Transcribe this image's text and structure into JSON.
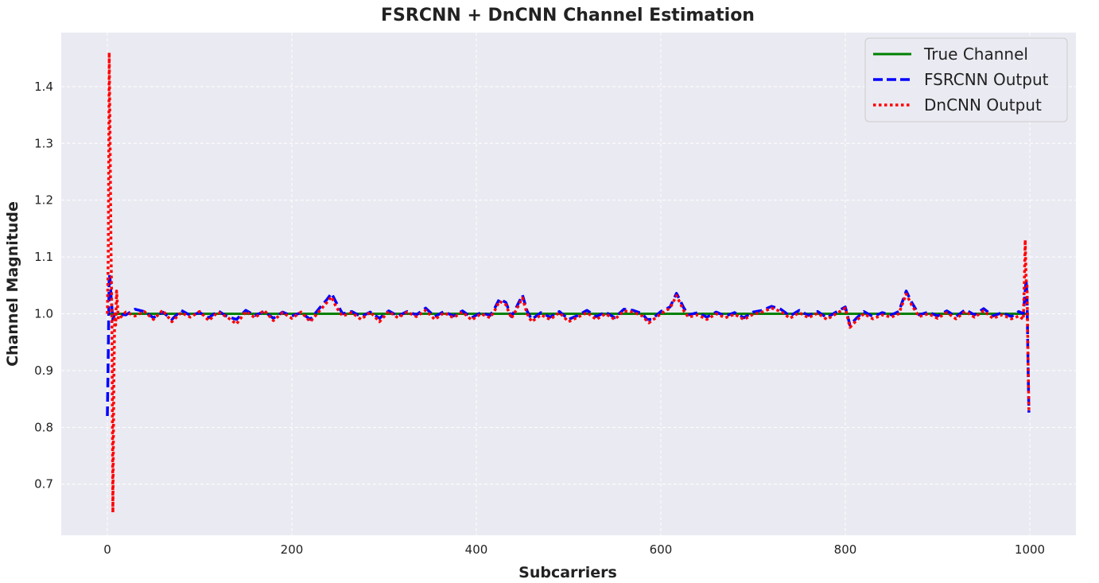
{
  "chart_data": {
    "type": "line",
    "title": "FSRCNN + DnCNN Channel Estimation",
    "xlabel": "Subcarriers",
    "ylabel": "Channel Magnitude",
    "xlim": [
      -50,
      1050
    ],
    "ylim": [
      0.61,
      1.495
    ],
    "xticks": [
      0,
      200,
      400,
      600,
      800,
      1000
    ],
    "yticks": [
      0.7,
      0.8,
      0.9,
      1.0,
      1.1,
      1.2,
      1.3,
      1.4
    ],
    "xtick_labels": [
      "0",
      "200",
      "400",
      "600",
      "800",
      "1000"
    ],
    "ytick_labels": [
      "0.7",
      "0.8",
      "0.9",
      "1.0",
      "1.1",
      "1.2",
      "1.3",
      "1.4"
    ],
    "grid": true,
    "grid_style": "dashed",
    "background": "#eaeaf2",
    "legend_position": "upper right",
    "series": [
      {
        "name": "True Channel",
        "color": "#008000",
        "style": "solid",
        "points": [
          [
            0,
            1.0
          ],
          [
            999,
            1.0
          ]
        ]
      },
      {
        "name": "FSRCNN Output",
        "color": "#0000ff",
        "style": "dashed",
        "points": [
          [
            0,
            0.82
          ],
          [
            1,
            0.93
          ],
          [
            2,
            1.07
          ],
          [
            3,
            1.06
          ],
          [
            4,
            1.03
          ],
          [
            6,
            0.99
          ],
          [
            8,
            1.0
          ],
          [
            20,
            0.998
          ],
          [
            30,
            1.008
          ],
          [
            40,
            1.004
          ],
          [
            50,
            0.993
          ],
          [
            60,
            1.003
          ],
          [
            70,
            0.99
          ],
          [
            80,
            1.006
          ],
          [
            90,
            0.997
          ],
          [
            100,
            1.002
          ],
          [
            110,
            0.993
          ],
          [
            120,
            1.005
          ],
          [
            130,
            0.995
          ],
          [
            140,
            0.99
          ],
          [
            150,
            1.006
          ],
          [
            160,
            0.997
          ],
          [
            170,
            1.004
          ],
          [
            180,
            0.992
          ],
          [
            190,
            1.003
          ],
          [
            200,
            0.996
          ],
          [
            210,
            1.002
          ],
          [
            220,
            0.99
          ],
          [
            230,
            1.01
          ],
          [
            238,
            1.025
          ],
          [
            243,
            1.036
          ],
          [
            248,
            1.02
          ],
          [
            255,
            1.0
          ],
          [
            265,
            1.004
          ],
          [
            275,
            0.995
          ],
          [
            285,
            1.003
          ],
          [
            295,
            0.992
          ],
          [
            305,
            1.005
          ],
          [
            315,
            0.996
          ],
          [
            325,
            1.004
          ],
          [
            335,
            0.998
          ],
          [
            345,
            1.01
          ],
          [
            355,
            0.995
          ],
          [
            365,
            1.004
          ],
          [
            375,
            0.996
          ],
          [
            385,
            1.005
          ],
          [
            395,
            0.993
          ],
          [
            405,
            1.002
          ],
          [
            415,
            0.997
          ],
          [
            420,
            1.01
          ],
          [
            425,
            1.026
          ],
          [
            432,
            1.02
          ],
          [
            438,
            0.995
          ],
          [
            443,
            1.01
          ],
          [
            450,
            1.033
          ],
          [
            455,
            1.005
          ],
          [
            460,
            0.99
          ],
          [
            470,
            1.002
          ],
          [
            480,
            0.994
          ],
          [
            490,
            1.004
          ],
          [
            500,
            0.99
          ],
          [
            510,
            0.997
          ],
          [
            520,
            1.006
          ],
          [
            530,
            0.995
          ],
          [
            540,
            1.003
          ],
          [
            550,
            0.993
          ],
          [
            560,
            1.008
          ],
          [
            570,
            1.006
          ],
          [
            580,
            1.0
          ],
          [
            585,
            0.99
          ],
          [
            590,
            0.99
          ],
          [
            600,
            1.004
          ],
          [
            610,
            1.012
          ],
          [
            617,
            1.036
          ],
          [
            625,
            1.01
          ],
          [
            630,
            0.998
          ],
          [
            640,
            1.002
          ],
          [
            650,
            0.994
          ],
          [
            660,
            1.003
          ],
          [
            670,
            0.996
          ],
          [
            680,
            1.002
          ],
          [
            690,
            0.993
          ],
          [
            700,
            1.003
          ],
          [
            710,
            1.006
          ],
          [
            720,
            1.013
          ],
          [
            730,
            1.008
          ],
          [
            740,
            0.996
          ],
          [
            750,
            1.006
          ],
          [
            760,
            0.997
          ],
          [
            770,
            1.004
          ],
          [
            780,
            0.993
          ],
          [
            790,
            1.003
          ],
          [
            800,
            1.012
          ],
          [
            805,
            0.98
          ],
          [
            812,
            0.992
          ],
          [
            820,
            1.004
          ],
          [
            830,
            0.995
          ],
          [
            840,
            1.002
          ],
          [
            850,
            0.998
          ],
          [
            858,
            1.004
          ],
          [
            866,
            1.04
          ],
          [
            872,
            1.02
          ],
          [
            880,
            0.998
          ],
          [
            890,
            1.003
          ],
          [
            900,
            0.996
          ],
          [
            910,
            1.005
          ],
          [
            920,
            0.995
          ],
          [
            930,
            1.007
          ],
          [
            940,
            0.998
          ],
          [
            950,
            1.009
          ],
          [
            960,
            0.996
          ],
          [
            970,
            1.002
          ],
          [
            980,
            0.995
          ],
          [
            988,
            1.004
          ],
          [
            993,
            1.0
          ],
          [
            995,
            1.04
          ],
          [
            996,
            1.06
          ],
          [
            997,
            1.03
          ],
          [
            998,
            0.92
          ],
          [
            999,
            0.826
          ]
        ]
      },
      {
        "name": "DnCNN Output",
        "color": "#ff0000",
        "style": "dotted",
        "points": [
          [
            0,
            1.0
          ],
          [
            1,
            1.1
          ],
          [
            2,
            1.46
          ],
          [
            3,
            1.3
          ],
          [
            4,
            1.11
          ],
          [
            5,
            0.98
          ],
          [
            6,
            0.65
          ],
          [
            7,
            0.88
          ],
          [
            8,
            1.0
          ],
          [
            9,
            0.98
          ],
          [
            10,
            1.04
          ],
          [
            12,
            0.99
          ],
          [
            20,
            1.003
          ],
          [
            30,
            0.996
          ],
          [
            40,
            1.004
          ],
          [
            50,
            0.99
          ],
          [
            60,
            1.006
          ],
          [
            70,
            0.986
          ],
          [
            80,
            1.002
          ],
          [
            90,
            0.994
          ],
          [
            100,
            1.004
          ],
          [
            110,
            0.988
          ],
          [
            120,
            1.003
          ],
          [
            130,
            0.994
          ],
          [
            140,
            0.982
          ],
          [
            150,
            1.004
          ],
          [
            160,
            0.993
          ],
          [
            170,
            1.006
          ],
          [
            180,
            0.988
          ],
          [
            190,
            1.002
          ],
          [
            200,
            0.992
          ],
          [
            210,
            1.003
          ],
          [
            220,
            0.986
          ],
          [
            230,
            1.005
          ],
          [
            238,
            1.02
          ],
          [
            243,
            1.03
          ],
          [
            248,
            1.012
          ],
          [
            255,
            0.996
          ],
          [
            265,
            1.002
          ],
          [
            275,
            0.99
          ],
          [
            285,
            1.003
          ],
          [
            295,
            0.986
          ],
          [
            305,
            1.004
          ],
          [
            315,
            0.993
          ],
          [
            325,
            1.003
          ],
          [
            335,
            0.995
          ],
          [
            345,
            1.006
          ],
          [
            355,
            0.99
          ],
          [
            365,
            1.002
          ],
          [
            375,
            0.993
          ],
          [
            385,
            1.003
          ],
          [
            395,
            0.989
          ],
          [
            405,
            1.0
          ],
          [
            415,
            0.993
          ],
          [
            420,
            1.006
          ],
          [
            425,
            1.022
          ],
          [
            432,
            1.016
          ],
          [
            438,
            0.992
          ],
          [
            443,
            1.006
          ],
          [
            450,
            1.028
          ],
          [
            455,
            1.0
          ],
          [
            460,
            0.986
          ],
          [
            470,
            0.998
          ],
          [
            480,
            0.99
          ],
          [
            490,
            1.002
          ],
          [
            500,
            0.986
          ],
          [
            510,
            0.994
          ],
          [
            520,
            1.002
          ],
          [
            530,
            0.99
          ],
          [
            540,
            1.0
          ],
          [
            550,
            0.99
          ],
          [
            560,
            1.005
          ],
          [
            570,
            1.003
          ],
          [
            580,
            0.996
          ],
          [
            587,
            0.984
          ],
          [
            592,
            0.99
          ],
          [
            600,
            1.0
          ],
          [
            610,
            1.01
          ],
          [
            617,
            1.032
          ],
          [
            625,
            1.005
          ],
          [
            630,
            0.994
          ],
          [
            640,
            0.998
          ],
          [
            650,
            0.99
          ],
          [
            660,
            1.0
          ],
          [
            670,
            0.993
          ],
          [
            680,
            0.999
          ],
          [
            690,
            0.99
          ],
          [
            700,
            0.999
          ],
          [
            710,
            1.003
          ],
          [
            720,
            1.01
          ],
          [
            730,
            1.004
          ],
          [
            740,
            0.992
          ],
          [
            750,
            1.002
          ],
          [
            760,
            0.993
          ],
          [
            770,
            1.001
          ],
          [
            780,
            0.99
          ],
          [
            790,
            1.0
          ],
          [
            800,
            1.01
          ],
          [
            805,
            0.976
          ],
          [
            812,
            0.988
          ],
          [
            820,
            1.0
          ],
          [
            830,
            0.991
          ],
          [
            840,
            0.998
          ],
          [
            850,
            0.994
          ],
          [
            858,
            1.0
          ],
          [
            866,
            1.035
          ],
          [
            872,
            1.015
          ],
          [
            880,
            0.995
          ],
          [
            890,
            1.0
          ],
          [
            900,
            0.992
          ],
          [
            910,
            1.002
          ],
          [
            920,
            0.991
          ],
          [
            930,
            1.004
          ],
          [
            940,
            0.994
          ],
          [
            950,
            1.005
          ],
          [
            960,
            0.992
          ],
          [
            970,
            0.998
          ],
          [
            980,
            0.991
          ],
          [
            988,
            0.996
          ],
          [
            993,
            0.99
          ],
          [
            994,
            1.05
          ],
          [
            995,
            1.13
          ],
          [
            996,
            1.06
          ],
          [
            997,
            1.05
          ],
          [
            998,
            0.93
          ],
          [
            999,
            0.83
          ]
        ]
      }
    ]
  }
}
